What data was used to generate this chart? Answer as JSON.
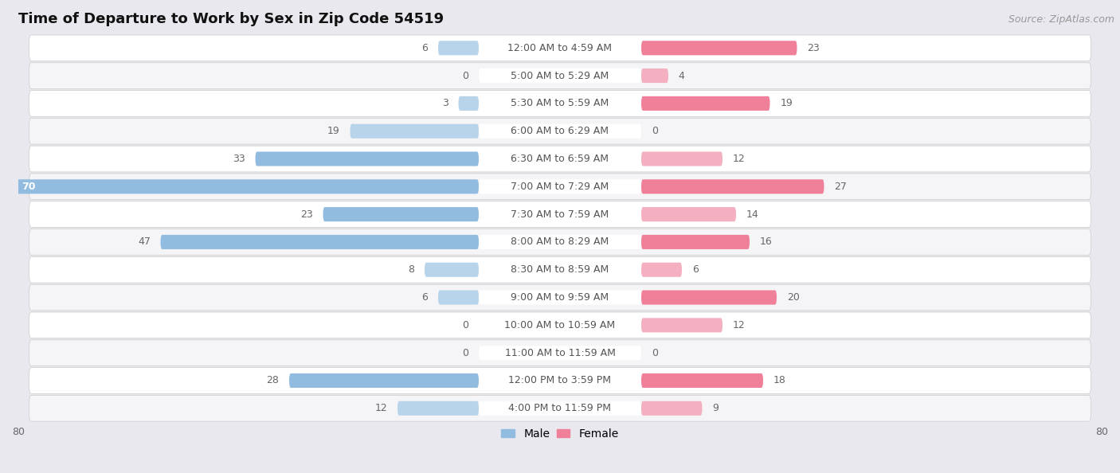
{
  "title": "Time of Departure to Work by Sex in Zip Code 54519",
  "source": "Source: ZipAtlas.com",
  "categories": [
    "12:00 AM to 4:59 AM",
    "5:00 AM to 5:29 AM",
    "5:30 AM to 5:59 AM",
    "6:00 AM to 6:29 AM",
    "6:30 AM to 6:59 AM",
    "7:00 AM to 7:29 AM",
    "7:30 AM to 7:59 AM",
    "8:00 AM to 8:29 AM",
    "8:30 AM to 8:59 AM",
    "9:00 AM to 9:59 AM",
    "10:00 AM to 10:59 AM",
    "11:00 AM to 11:59 AM",
    "12:00 PM to 3:59 PM",
    "4:00 PM to 11:59 PM"
  ],
  "male": [
    6,
    0,
    3,
    19,
    33,
    70,
    23,
    47,
    8,
    6,
    0,
    0,
    28,
    12
  ],
  "female": [
    23,
    4,
    19,
    0,
    12,
    27,
    14,
    16,
    6,
    20,
    12,
    0,
    18,
    9
  ],
  "male_color": "#91bce0",
  "female_color": "#f08099",
  "male_color_light": "#b8d4ea",
  "female_color_light": "#f4b0c0",
  "male_label": "Male",
  "female_label": "Female",
  "xlim": 80,
  "bar_height": 0.52,
  "bg_color": "#e8e8ee",
  "row_color_even": "#f5f5f8",
  "row_color_odd": "#ffffff",
  "title_fontsize": 13,
  "label_fontsize": 9,
  "value_fontsize": 9,
  "tick_fontsize": 9,
  "source_fontsize": 9,
  "label_pill_color": "#ffffff",
  "label_text_color": "#555555",
  "value_text_color": "#666666"
}
